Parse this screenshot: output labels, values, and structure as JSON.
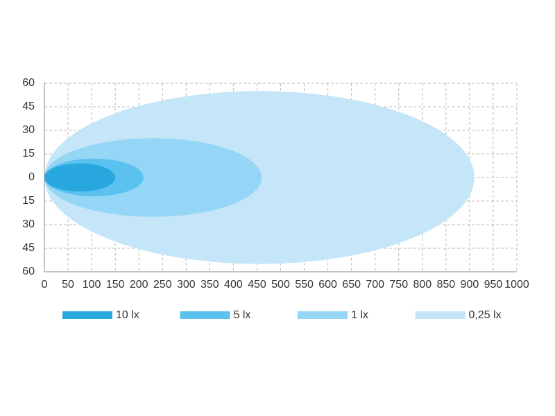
{
  "chart_data": {
    "type": "beam",
    "series": [
      {
        "name": "10 lx",
        "color": "#29a8e0",
        "reach": 150,
        "half_width": 9
      },
      {
        "name": "5 lx",
        "color": "#5bc2ef",
        "reach": 210,
        "half_width": 12
      },
      {
        "name": "1 lx",
        "color": "#95d5f5",
        "reach": 460,
        "half_width": 25
      },
      {
        "name": "0,25 lx",
        "color": "#c4e6f8",
        "reach": 910,
        "half_width": 55
      }
    ],
    "xlim": [
      0,
      1000
    ],
    "xticks": [
      0,
      50,
      100,
      150,
      200,
      250,
      300,
      350,
      400,
      450,
      500,
      550,
      600,
      650,
      700,
      750,
      800,
      850,
      900,
      950,
      1000
    ],
    "ylim": [
      -60,
      60
    ],
    "yticks": [
      60,
      45,
      30,
      15,
      0,
      {
        "value": -15,
        "label": "15"
      },
      {
        "value": -30,
        "label": "30"
      },
      {
        "value": -45,
        "label": "45"
      },
      {
        "value": -60,
        "label": "60"
      }
    ],
    "grid": true
  }
}
